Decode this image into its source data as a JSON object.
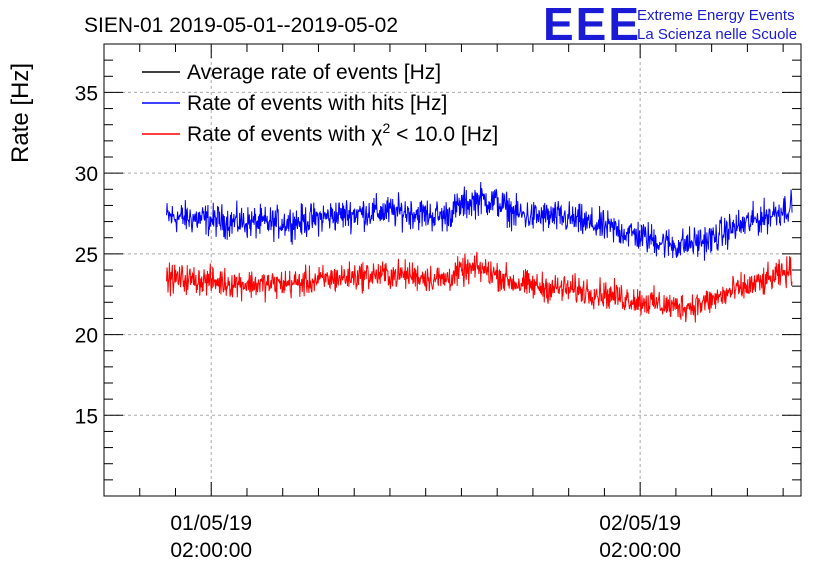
{
  "chart_data": {
    "type": "line",
    "title": "SIEN-01 2019-05-01--2019-05-02",
    "ylabel": "Rate [Hz]",
    "xlabel": "",
    "ylim": [
      10,
      38
    ],
    "yticks": [
      15,
      20,
      25,
      30,
      35
    ],
    "x_range_hours": [
      -4,
      35
    ],
    "x_ticks": [
      {
        "hour": 2,
        "date": "01/05/19",
        "time": "02:00:00"
      },
      {
        "hour": 26,
        "date": "02/05/19",
        "time": "02:00:00"
      }
    ],
    "grid": true,
    "legend_position": "top-left",
    "series": [
      {
        "name": "Average rate of events [Hz]",
        "color": "#000000",
        "x_hours": [],
        "values": []
      },
      {
        "name": "Rate of events with hits [Hz]",
        "color": "#0000ff",
        "x_hours": [
          -0.5,
          1,
          3,
          5,
          7,
          9,
          11,
          13,
          15,
          16,
          17,
          18,
          19,
          20,
          21,
          22,
          23,
          25,
          27,
          28,
          29,
          30,
          31,
          33,
          34.5
        ],
        "values": [
          27.3,
          27.2,
          27.0,
          26.9,
          27.0,
          27.4,
          27.6,
          27.6,
          27.3,
          28.0,
          28.4,
          28.2,
          27.5,
          27.3,
          27.3,
          27.2,
          26.9,
          26.4,
          25.8,
          25.5,
          25.7,
          25.9,
          26.5,
          27.3,
          28.0
        ],
        "noise_amplitude": 0.9
      },
      {
        "name": "Rate of events with χ² < 10.0 [Hz]",
        "color": "#ff0000",
        "x_hours": [
          -0.5,
          1,
          3,
          5,
          7,
          9,
          11,
          13,
          15,
          16,
          17,
          18,
          19,
          20,
          21,
          22,
          23,
          25,
          27,
          28,
          29,
          30,
          31,
          33,
          34.5
        ],
        "values": [
          23.5,
          23.4,
          23.2,
          23.1,
          23.2,
          23.5,
          23.7,
          23.7,
          23.4,
          23.9,
          24.1,
          23.7,
          23.2,
          23.0,
          22.9,
          22.8,
          22.7,
          22.3,
          21.9,
          21.7,
          21.8,
          22.1,
          22.6,
          23.3,
          24.0
        ],
        "noise_amplitude": 0.8
      }
    ]
  },
  "legend": {
    "entry1": "Average rate of events [Hz]",
    "entry2": "Rate of events with hits [Hz]",
    "entry3_prefix": "Rate of events with χ",
    "entry3_sup": "2",
    "entry3_suffix": " < 10.0 [Hz]"
  },
  "logo": {
    "mark": "EEE",
    "line1": "Extreme Energy Events",
    "line2": "La Scienza nelle Scuole",
    "color": "#1b1bd6"
  }
}
